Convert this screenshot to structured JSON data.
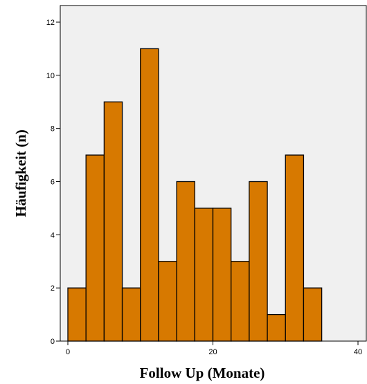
{
  "chart_data": {
    "type": "bar",
    "title": "",
    "xlabel": "Follow Up (Monate)",
    "ylabel": "Häufigkeit (n)",
    "bin_width": 2.5,
    "bins": [
      {
        "start": 0,
        "end": 2.5,
        "value": 2
      },
      {
        "start": 2.5,
        "end": 5,
        "value": 7
      },
      {
        "start": 5,
        "end": 7.5,
        "value": 9
      },
      {
        "start": 7.5,
        "end": 10,
        "value": 2
      },
      {
        "start": 10,
        "end": 12.5,
        "value": 11
      },
      {
        "start": 12.5,
        "end": 15,
        "value": 3
      },
      {
        "start": 15,
        "end": 17.5,
        "value": 6
      },
      {
        "start": 17.5,
        "end": 20,
        "value": 5
      },
      {
        "start": 20,
        "end": 22.5,
        "value": 5
      },
      {
        "start": 22.5,
        "end": 25,
        "value": 3
      },
      {
        "start": 25,
        "end": 27.5,
        "value": 6
      },
      {
        "start": 27.5,
        "end": 30,
        "value": 1
      },
      {
        "start": 30,
        "end": 32.5,
        "value": 7
      },
      {
        "start": 32.5,
        "end": 35,
        "value": 2
      }
    ],
    "xlim": [
      0,
      40
    ],
    "ylim": [
      0,
      12
    ],
    "xticks": [
      0,
      20,
      40
    ],
    "yticks": [
      0,
      2,
      4,
      6,
      8,
      10,
      12
    ],
    "grid": false,
    "colors": {
      "bar_fill": "#d77900",
      "bar_stroke": "#000000",
      "plot_background": "#f0f0f0"
    }
  }
}
